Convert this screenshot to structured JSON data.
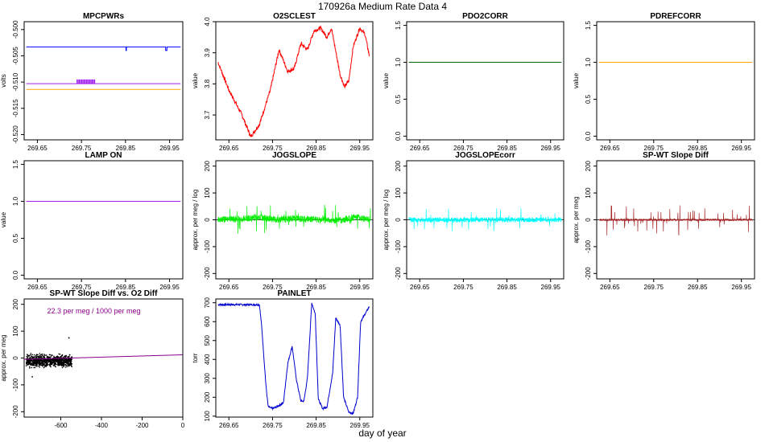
{
  "page": {
    "title": "170926a   Medium Rate Data 4",
    "xlabel": "day of year"
  },
  "chart_data": [
    {
      "id": "mpcpwrs",
      "type": "line",
      "title": "MPCPWRs",
      "ylabel": "volts",
      "xlim": [
        269.62,
        269.98
      ],
      "ylim": [
        -0.521,
        -0.4985
      ],
      "xticks": [
        "269.65",
        "269.75",
        "269.85",
        "269.95"
      ],
      "xtick_values": [
        269.65,
        269.75,
        269.85,
        269.95
      ],
      "yticks": [
        "-0.500",
        "-0.505",
        "-0.510",
        "-0.515",
        "-0.520"
      ],
      "ytick_values": [
        -0.5,
        -0.505,
        -0.51,
        -0.515,
        -0.52
      ],
      "series": [
        {
          "color": "#0000ff",
          "x": [
            269.625,
            269.85,
            269.851,
            269.851,
            269.852,
            269.852,
            269.94,
            269.941,
            269.941,
            269.944,
            269.944,
            269.975
          ],
          "y": [
            -0.5033,
            -0.5033,
            -0.5033,
            -0.504,
            -0.504,
            -0.5033,
            -0.5033,
            -0.5033,
            -0.504,
            -0.504,
            -0.5033,
            -0.5033
          ]
        },
        {
          "color": "#a020f0",
          "x": [
            269.625,
            269.975
          ],
          "y": [
            -0.5103,
            -0.5103
          ]
        },
        {
          "color": "#ffa500",
          "x": [
            269.625,
            269.975
          ],
          "y": [
            -0.5114,
            -0.5114
          ]
        }
      ],
      "spikes": {
        "color": "#a020f0",
        "base": -0.5103,
        "top": -0.5095,
        "from": 269.74,
        "to": 269.78,
        "count": 16
      }
    },
    {
      "id": "o2sclest",
      "type": "line",
      "title": "O2SCLEST",
      "ylabel": "value",
      "xlim": [
        269.62,
        269.98
      ],
      "ylim": [
        3.62,
        4.0
      ],
      "xticks": [
        "269.65",
        "269.75",
        "269.85",
        "269.95"
      ],
      "xtick_values": [
        269.65,
        269.75,
        269.85,
        269.95
      ],
      "yticks": [
        "3.7",
        "3.8",
        "3.9",
        "4.0"
      ],
      "ytick_values": [
        3.7,
        3.8,
        3.9,
        4.0
      ],
      "series": [
        {
          "color": "#ff0000",
          "x": [
            269.625,
            269.65,
            269.68,
            269.7,
            269.72,
            269.745,
            269.765,
            269.785,
            269.8,
            269.815,
            269.83,
            269.845,
            269.86,
            269.875,
            269.885,
            269.905,
            269.915,
            269.925,
            269.935,
            269.95,
            269.962,
            269.972
          ],
          "y": [
            3.87,
            3.78,
            3.7,
            3.63,
            3.67,
            3.78,
            3.91,
            3.84,
            3.85,
            3.93,
            3.91,
            3.97,
            3.98,
            3.95,
            3.98,
            3.83,
            3.79,
            3.81,
            3.92,
            3.98,
            3.96,
            3.89
          ]
        }
      ]
    },
    {
      "id": "pdo2corr",
      "type": "line",
      "title": "PDO2CORR",
      "ylabel": "value",
      "xlim": [
        269.62,
        269.98
      ],
      "ylim": [
        -0.05,
        1.55
      ],
      "xticks": [
        "269.65",
        "269.75",
        "269.85",
        "269.95"
      ],
      "xtick_values": [
        269.65,
        269.75,
        269.85,
        269.95
      ],
      "yticks": [
        "0.0",
        "0.5",
        "1.0",
        "1.5"
      ],
      "ytick_values": [
        0,
        0.5,
        1.0,
        1.5
      ],
      "series": [
        {
          "color": "#006400",
          "x": [
            269.625,
            269.975
          ],
          "y": [
            1.0,
            1.0
          ]
        }
      ]
    },
    {
      "id": "pdrefcorr",
      "type": "line",
      "title": "PDREFCORR",
      "ylabel": "value",
      "xlim": [
        269.62,
        269.98
      ],
      "ylim": [
        -0.05,
        1.55
      ],
      "xticks": [
        "269.65",
        "269.75",
        "269.85",
        "269.95"
      ],
      "xtick_values": [
        269.65,
        269.75,
        269.85,
        269.95
      ],
      "yticks": [
        "0.0",
        "0.5",
        "1.0",
        "1.5"
      ],
      "ytick_values": [
        0,
        0.5,
        1.0,
        1.5
      ],
      "series": [
        {
          "color": "#ffa500",
          "x": [
            269.625,
            269.975
          ],
          "y": [
            1.0,
            1.0
          ]
        }
      ]
    },
    {
      "id": "lampon",
      "type": "line",
      "title": "LAMP ON",
      "ylabel": "value",
      "xlim": [
        269.62,
        269.98
      ],
      "ylim": [
        -0.05,
        1.55
      ],
      "xticks": [
        "269.65",
        "269.75",
        "269.85",
        "269.95"
      ],
      "xtick_values": [
        269.65,
        269.75,
        269.85,
        269.95
      ],
      "yticks": [
        "0.0",
        "0.5",
        "1.0",
        "1.5"
      ],
      "ytick_values": [
        0,
        0.5,
        1.0,
        1.5
      ],
      "series": [
        {
          "color": "#a020f0",
          "x": [
            269.625,
            269.975
          ],
          "y": [
            1.0,
            1.0
          ]
        }
      ]
    },
    {
      "id": "jogslope",
      "type": "line",
      "title": "JOGSLOPE",
      "ylabel": "approx. per meg / log",
      "xlim": [
        269.62,
        269.98
      ],
      "ylim": [
        -220,
        220
      ],
      "xticks": [
        "269.65",
        "269.75",
        "269.85",
        "269.95"
      ],
      "xtick_values": [
        269.65,
        269.75,
        269.85,
        269.95
      ],
      "yticks": [
        "-200",
        "-100",
        "0",
        "100",
        "200"
      ],
      "ytick_values": [
        -200,
        -100,
        0,
        100,
        200
      ],
      "hline": 0,
      "noise": {
        "color": "#00ee00",
        "from": 269.625,
        "to": 269.975,
        "amp": 25,
        "spike": 60,
        "base_x": [
          269.625,
          269.7,
          269.72,
          269.76,
          269.8,
          269.85,
          269.9,
          269.94,
          269.975
        ],
        "base_y": [
          0,
          5,
          10,
          0,
          5,
          0,
          -3,
          10,
          0
        ]
      }
    },
    {
      "id": "jogslopecorr",
      "type": "line",
      "title": "JOGSLOPEcorr",
      "ylabel": "approx. per meg / log",
      "xlim": [
        269.62,
        269.98
      ],
      "ylim": [
        -220,
        220
      ],
      "xticks": [
        "269.65",
        "269.75",
        "269.85",
        "269.95"
      ],
      "xtick_values": [
        269.65,
        269.75,
        269.85,
        269.95
      ],
      "yticks": [
        "-200",
        "-100",
        "0",
        "100",
        "200"
      ],
      "ytick_values": [
        -200,
        -100,
        0,
        100,
        200
      ],
      "hline": 0,
      "noise": {
        "color": "#00ffff",
        "from": 269.625,
        "to": 269.975,
        "amp": 18,
        "spike": 40,
        "base_x": [
          269.625,
          269.975
        ],
        "base_y": [
          0,
          0
        ]
      }
    },
    {
      "id": "spwtslope",
      "type": "line",
      "title": "SP-WT Slope Diff",
      "ylabel": "approx. per meg",
      "xlim": [
        269.62,
        269.98
      ],
      "ylim": [
        -220,
        220
      ],
      "xticks": [
        "269.65",
        "269.75",
        "269.85",
        "269.95"
      ],
      "xtick_values": [
        269.65,
        269.75,
        269.85,
        269.95
      ],
      "yticks": [
        "-200",
        "-100",
        "0",
        "100",
        "200"
      ],
      "ytick_values": [
        -200,
        -100,
        0,
        100,
        200
      ],
      "hline": 0,
      "noise": {
        "color": "#a52a2a",
        "from": 269.625,
        "to": 269.975,
        "amp": 8,
        "spike": 55,
        "base_x": [
          269.625,
          269.975
        ],
        "base_y": [
          0,
          0
        ]
      }
    },
    {
      "id": "spwt_vs_o2",
      "type": "scatter",
      "title": "SP-WT Slope Diff vs. O2 Diff",
      "ylabel": "approx. per meg",
      "annotation": "22.3 per meg / 1000 per meg",
      "annotation_color": "#8b008b",
      "xlim": [
        -780,
        0
      ],
      "ylim": [
        -220,
        220
      ],
      "xticks": [
        "-600",
        "-400",
        "-200",
        "0"
      ],
      "xtick_values": [
        -600,
        -400,
        -200,
        0
      ],
      "yticks": [
        "-200",
        "-100",
        "0",
        "100",
        "200"
      ],
      "ytick_values": [
        -200,
        -100,
        0,
        100,
        200
      ],
      "fit": {
        "color": "#8b008b",
        "x": [
          -780,
          0
        ],
        "y": [
          -5,
          12
        ]
      },
      "cloud": {
        "x_from": -770,
        "x_to": -545,
        "y_center": -10,
        "y_spread": 25,
        "count": 900
      }
    },
    {
      "id": "painlet",
      "type": "line",
      "title": "PAINLET",
      "ylabel": "torr",
      "xlim": [
        269.62,
        269.98
      ],
      "ylim": [
        95,
        720
      ],
      "xticks": [
        "269.65",
        "269.75",
        "269.85",
        "269.95"
      ],
      "xtick_values": [
        269.65,
        269.75,
        269.85,
        269.95
      ],
      "yticks": [
        "100",
        "200",
        "300",
        "400",
        "500",
        "600",
        "700"
      ],
      "ytick_values": [
        100,
        200,
        300,
        400,
        500,
        600,
        700
      ],
      "series": [
        {
          "color": "#0000cd",
          "x": [
            269.625,
            269.72,
            269.725,
            269.735,
            269.74,
            269.75,
            269.76,
            269.775,
            269.785,
            269.795,
            269.8,
            269.805,
            269.815,
            269.822,
            269.83,
            269.84,
            269.848,
            269.855,
            269.865,
            269.875,
            269.888,
            269.895,
            269.905,
            269.913,
            269.925,
            269.935,
            269.945,
            269.952,
            269.962,
            269.972
          ],
          "y": [
            690,
            690,
            580,
            260,
            150,
            140,
            150,
            170,
            380,
            470,
            380,
            290,
            180,
            180,
            300,
            700,
            640,
            190,
            140,
            150,
            330,
            620,
            580,
            200,
            120,
            115,
            200,
            600,
            640,
            680
          ]
        }
      ]
    }
  ]
}
